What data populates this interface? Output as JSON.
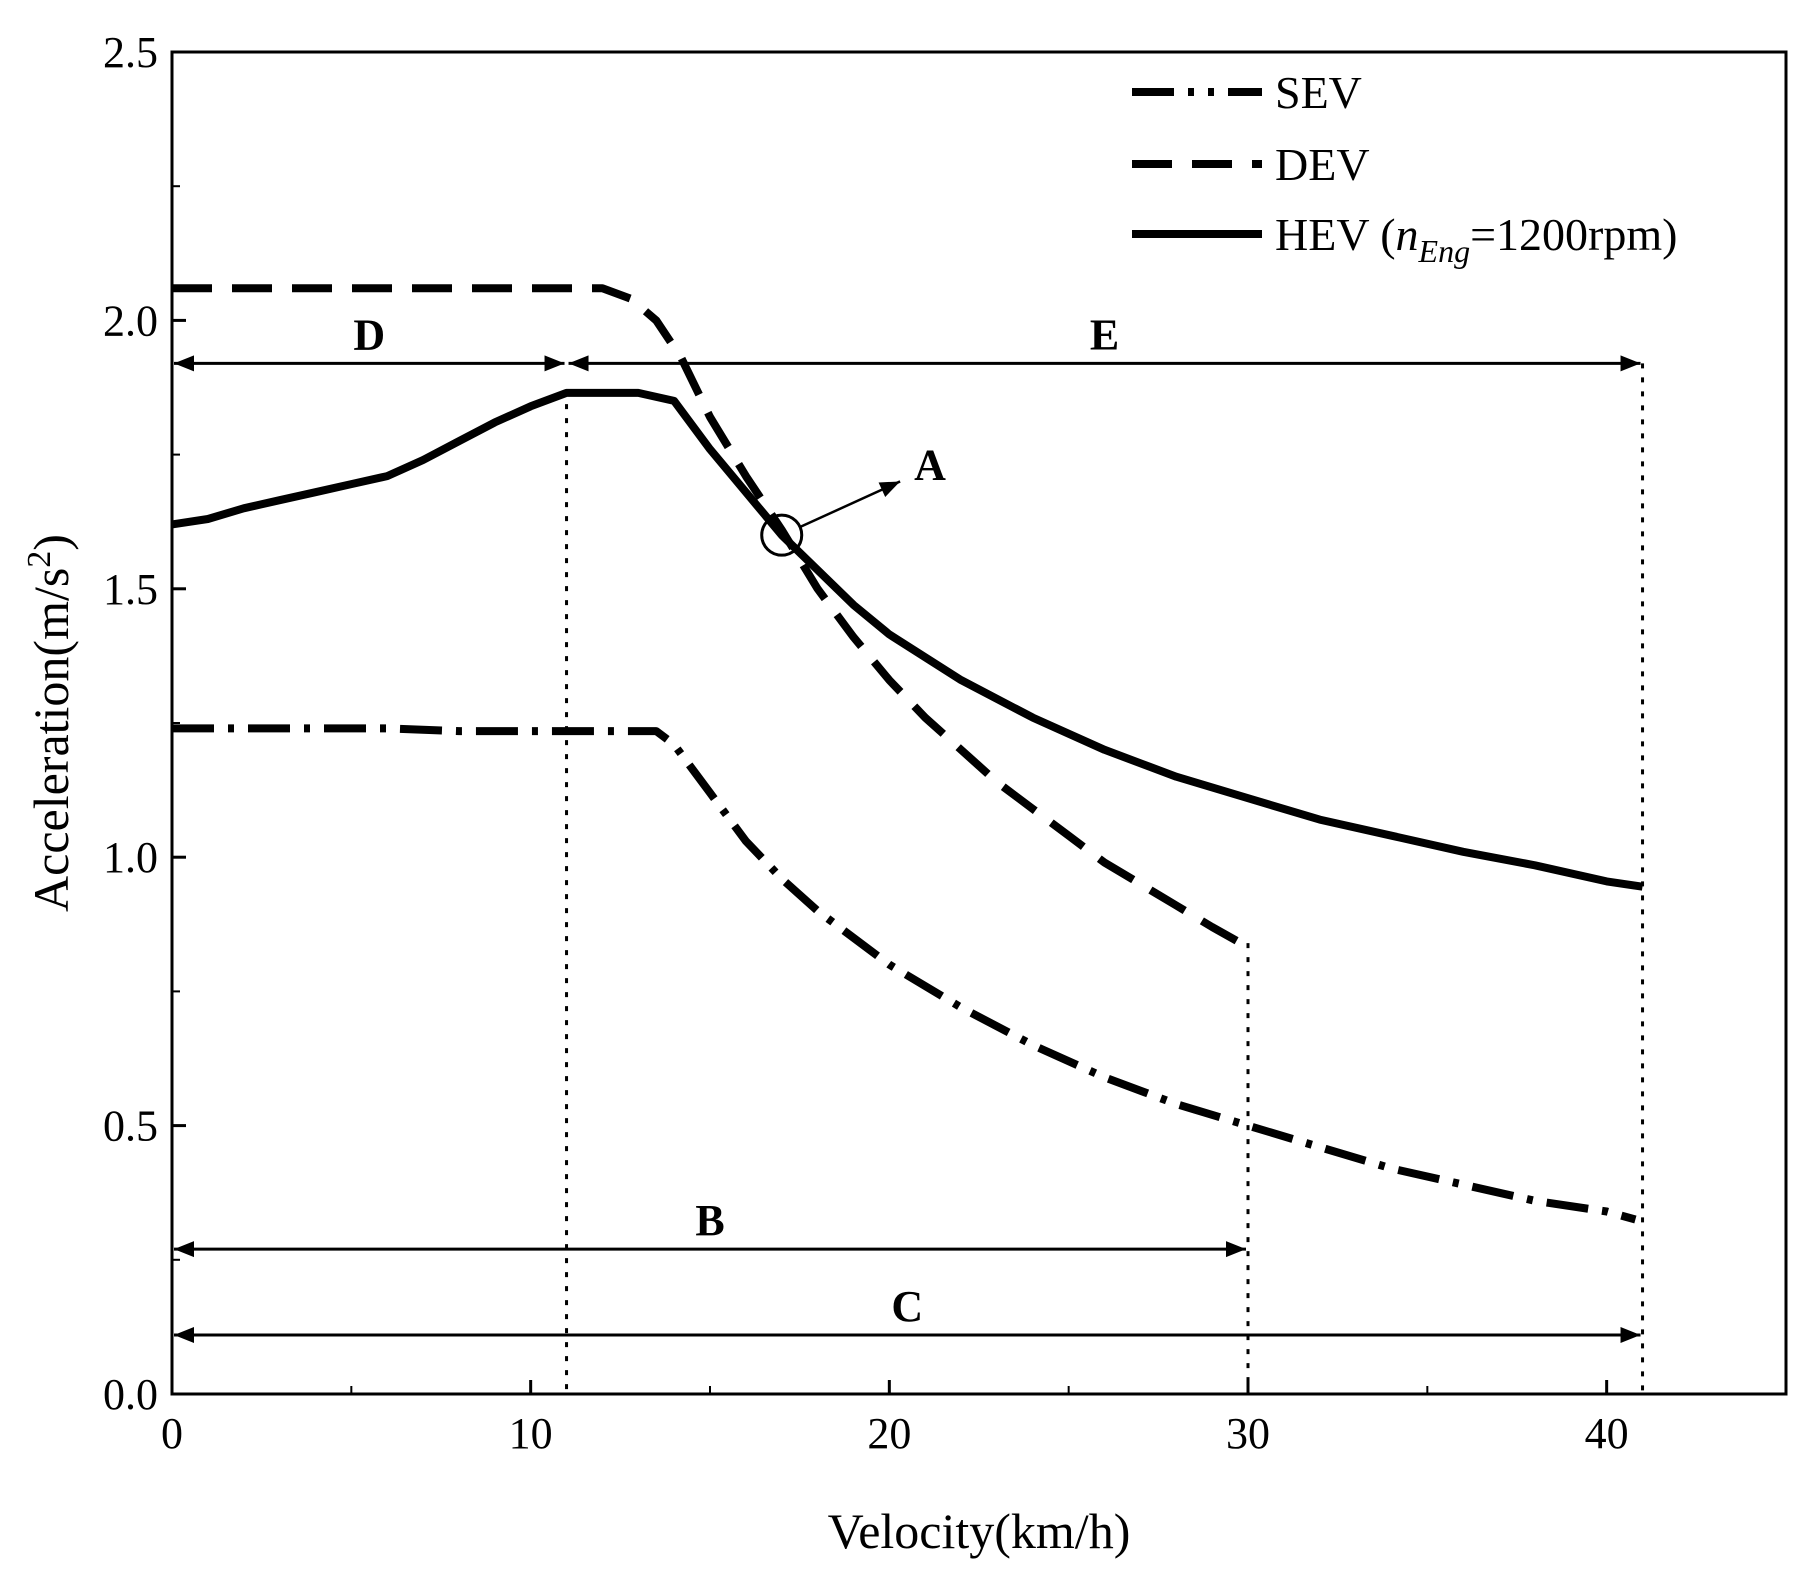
{
  "chart_data": {
    "type": "line",
    "xlabel": "Velocity(km/h)",
    "ylabel": "Acceleration(m/s²)",
    "xlim": [
      0,
      45
    ],
    "ylim": [
      0,
      2.5
    ],
    "x_ticks": [
      "0",
      "10",
      "20",
      "30",
      "40"
    ],
    "y_ticks": [
      "0.0",
      "0.5",
      "1.0",
      "1.5",
      "2.0",
      "2.5"
    ],
    "grid": false,
    "legend_position": "top-right",
    "series": [
      {
        "name": "SEV",
        "style": "dash-dot",
        "points": [
          [
            0,
            1.24
          ],
          [
            2,
            1.24
          ],
          [
            4,
            1.24
          ],
          [
            6,
            1.24
          ],
          [
            8,
            1.235
          ],
          [
            10,
            1.235
          ],
          [
            12,
            1.235
          ],
          [
            13.5,
            1.235
          ],
          [
            14,
            1.21
          ],
          [
            15,
            1.12
          ],
          [
            16,
            1.03
          ],
          [
            17,
            0.96
          ],
          [
            18,
            0.9
          ],
          [
            20,
            0.8
          ],
          [
            22,
            0.72
          ],
          [
            24,
            0.65
          ],
          [
            26,
            0.59
          ],
          [
            28,
            0.54
          ],
          [
            30,
            0.5
          ],
          [
            32,
            0.46
          ],
          [
            34,
            0.42
          ],
          [
            36,
            0.39
          ],
          [
            38,
            0.36
          ],
          [
            40,
            0.34
          ],
          [
            40.8,
            0.325
          ]
        ]
      },
      {
        "name": "DEV",
        "style": "dashed",
        "points": [
          [
            0,
            2.06
          ],
          [
            4,
            2.06
          ],
          [
            8,
            2.06
          ],
          [
            10,
            2.06
          ],
          [
            12,
            2.06
          ],
          [
            12.8,
            2.04
          ],
          [
            13.5,
            2.0
          ],
          [
            14.2,
            1.93
          ],
          [
            15,
            1.82
          ],
          [
            16,
            1.71
          ],
          [
            17,
            1.61
          ],
          [
            18,
            1.5
          ],
          [
            19,
            1.41
          ],
          [
            20,
            1.33
          ],
          [
            21,
            1.26
          ],
          [
            22,
            1.2
          ],
          [
            23,
            1.14
          ],
          [
            24,
            1.09
          ],
          [
            25,
            1.04
          ],
          [
            26,
            0.99
          ],
          [
            27,
            0.95
          ],
          [
            28,
            0.91
          ],
          [
            29,
            0.87
          ],
          [
            29.8,
            0.84
          ]
        ]
      },
      {
        "name": "HEV (nEng=1200rpm)",
        "style": "solid",
        "points": [
          [
            0,
            1.62
          ],
          [
            1,
            1.63
          ],
          [
            2,
            1.65
          ],
          [
            3,
            1.665
          ],
          [
            4,
            1.68
          ],
          [
            5,
            1.695
          ],
          [
            6,
            1.71
          ],
          [
            7,
            1.74
          ],
          [
            8,
            1.775
          ],
          [
            9,
            1.81
          ],
          [
            10,
            1.84
          ],
          [
            11,
            1.865
          ],
          [
            12,
            1.865
          ],
          [
            13,
            1.865
          ],
          [
            14,
            1.85
          ],
          [
            15,
            1.76
          ],
          [
            16,
            1.68
          ],
          [
            17,
            1.6
          ],
          [
            18,
            1.535
          ],
          [
            19,
            1.47
          ],
          [
            20,
            1.415
          ],
          [
            22,
            1.33
          ],
          [
            24,
            1.26
          ],
          [
            26,
            1.2
          ],
          [
            28,
            1.15
          ],
          [
            30,
            1.11
          ],
          [
            32,
            1.07
          ],
          [
            34,
            1.04
          ],
          [
            36,
            1.01
          ],
          [
            38,
            0.985
          ],
          [
            40,
            0.955
          ],
          [
            41,
            0.945
          ]
        ]
      }
    ],
    "vertical_reference_lines": [
      {
        "x": 11,
        "y_top": 1.87
      },
      {
        "x": 30,
        "y_top": 0.84
      },
      {
        "x": 41,
        "y_top": 1.92
      }
    ],
    "range_arrows": [
      {
        "label": "D",
        "x_start": 0,
        "x_end": 11,
        "y": 1.92
      },
      {
        "label": "E",
        "x_start": 11,
        "x_end": 41,
        "y": 1.92
      },
      {
        "label": "B",
        "x_start": 0,
        "x_end": 30,
        "y": 0.27
      },
      {
        "label": "C",
        "x_start": 0,
        "x_end": 41,
        "y": 0.11
      }
    ],
    "annotations": [
      {
        "label": "A",
        "marker": "circle",
        "x": 17,
        "y": 1.6,
        "arrow_to": [
          20.3,
          1.7
        ]
      }
    ]
  },
  "legend": {
    "sev": "SEV",
    "dev": "DEV",
    "hev_prefix": "HEV (",
    "hev_n": "n",
    "hev_sub": "Eng",
    "hev_suffix": "=1200rpm)"
  }
}
